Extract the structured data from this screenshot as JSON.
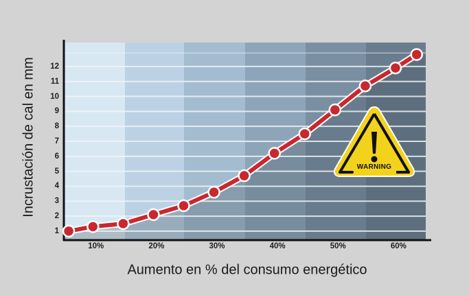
{
  "chart_data": {
    "type": "line",
    "title": "",
    "xlabel": "Aumento en % del consumo energético",
    "ylabel": "Incrustación de cal en mm",
    "x_tick_labels": [
      "10%",
      "20%",
      "30%",
      "40%",
      "50%",
      "60%"
    ],
    "x_ticks": [
      10,
      20,
      30,
      40,
      50,
      60
    ],
    "y_tick_labels": [
      "1",
      "2",
      "3",
      "4",
      "5",
      "6",
      "7",
      "8",
      "9",
      "10",
      "11",
      "12"
    ],
    "y_ticks": [
      1,
      2,
      3,
      4,
      5,
      6,
      7,
      8,
      9,
      10,
      11,
      12
    ],
    "xlim": [
      4.7,
      64.5
    ],
    "ylim": [
      0.4,
      13.6
    ],
    "grid": true,
    "legend": null,
    "series": [
      {
        "name": "Incrustación de cal",
        "color": "#c8282e",
        "x": [
          5.5,
          9.5,
          14.5,
          19.5,
          24.5,
          29.5,
          34.5,
          39.5,
          44.5,
          49.5,
          54.5,
          59.5,
          63
        ],
        "values": [
          1.0,
          1.3,
          1.5,
          2.1,
          2.7,
          3.6,
          4.7,
          6.2,
          7.5,
          9.1,
          10.7,
          11.9,
          12.8
        ]
      }
    ],
    "background_bands": [
      "#d8e8f3",
      "#bcd2e4",
      "#a4bccf",
      "#8ea5b9",
      "#7b8fa2",
      "#6a7d8e"
    ],
    "annotation": {
      "icon": "warning-triangle-icon",
      "text": "WARNING",
      "color": "#f3d21c"
    }
  },
  "labels": {
    "ylabel": "Incrustación de cal en mm",
    "xlabel": "Aumento en % del consumo energético",
    "warning": "WARNING"
  }
}
